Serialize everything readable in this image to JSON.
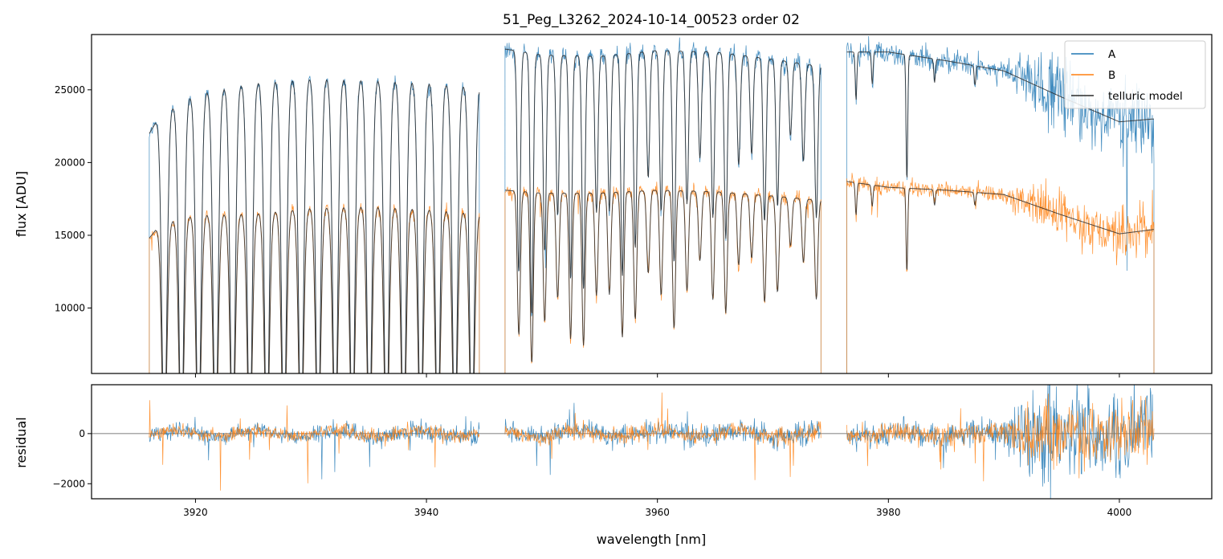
{
  "chart_data": [
    {
      "type": "line",
      "panel": "main",
      "title": "51_Peg_L3262_2024-10-14_00523  order 02",
      "xlabel": "",
      "ylabel": "flux [ADU]",
      "xlim": [
        3911,
        4008
      ],
      "ylim": [
        5500,
        28800
      ],
      "xticks": [
        3920,
        3940,
        3960,
        3980,
        4000
      ],
      "yticks": [
        10000,
        15000,
        20000,
        25000
      ],
      "grid": false,
      "legend": {
        "placement": "top-right",
        "entries": [
          "A",
          "B",
          "telluric model"
        ]
      },
      "segments": [
        [
          3916.0,
          3944.6
        ],
        [
          3946.8,
          3974.2
        ],
        [
          3976.4,
          4003.0
        ]
      ],
      "series": [
        {
          "name": "A",
          "color": "#1f77b4",
          "continuum": [
            [
              3916.0,
              22000
            ],
            [
              3917,
              23300
            ],
            [
              3920,
              24700
            ],
            [
              3925,
              25500
            ],
            [
              3930,
              25800
            ],
            [
              3935,
              25700
            ],
            [
              3940,
              25500
            ],
            [
              3944.6,
              25200
            ],
            [
              3946.8,
              27800
            ],
            [
              3950,
              27400
            ],
            [
              3955,
              27300
            ],
            [
              3960,
              27700
            ],
            [
              3965,
              27600
            ],
            [
              3970,
              27100
            ],
            [
              3974.2,
              26600
            ],
            [
              3976.4,
              27600
            ],
            [
              3980,
              27600
            ],
            [
              3985,
              27000
            ],
            [
              3990,
              26300
            ],
            [
              3995,
              24500
            ],
            [
              4000,
              22800
            ],
            [
              4003.0,
              23000
            ]
          ],
          "noise": [
            [
              3916,
              300
            ],
            [
              3990,
              600
            ],
            [
              3993,
              1800
            ],
            [
              4003,
              2200
            ]
          ]
        },
        {
          "name": "B",
          "color": "#ff7f0e",
          "continuum": [
            [
              3916.0,
              14800
            ],
            [
              3917,
              15800
            ],
            [
              3920,
              16400
            ],
            [
              3925,
              16500
            ],
            [
              3930,
              16900
            ],
            [
              3935,
              17000
            ],
            [
              3940,
              16800
            ],
            [
              3944.6,
              16500
            ],
            [
              3946.8,
              18100
            ],
            [
              3950,
              17900
            ],
            [
              3955,
              17900
            ],
            [
              3960,
              18100
            ],
            [
              3965,
              18000
            ],
            [
              3970,
              17700
            ],
            [
              3974.2,
              17400
            ],
            [
              3976.4,
              18700
            ],
            [
              3980,
              18300
            ],
            [
              3985,
              18100
            ],
            [
              3990,
              17800
            ],
            [
              3995,
              16400
            ],
            [
              4000,
              15100
            ],
            [
              4003.0,
              15400
            ]
          ],
          "noise": [
            [
              3916,
              250
            ],
            [
              3990,
              450
            ],
            [
              3993,
              1100
            ],
            [
              4003,
              1400
            ]
          ]
        },
        {
          "name": "telluric model",
          "color": "#2b2b2b"
        }
      ]
    },
    {
      "type": "line",
      "panel": "residual",
      "xlabel": "wavelength [nm]",
      "ylabel": "residual",
      "xlim": [
        3911,
        4008
      ],
      "ylim": [
        -2600,
        1950
      ],
      "xticks": [
        3920,
        3940,
        3960,
        3980,
        4000
      ],
      "yticks": [
        -2000,
        0
      ],
      "reference_line": 0,
      "series": [
        {
          "name": "A",
          "color": "#1f77b4",
          "noise": [
            [
              3916,
              380
            ],
            [
              3990,
              700
            ],
            [
              3992,
              2300
            ],
            [
              4003,
              2400
            ]
          ]
        },
        {
          "name": "B",
          "color": "#ff7f0e",
          "noise": [
            [
              3916,
              320
            ],
            [
              3990,
              550
            ],
            [
              3992,
              1500
            ],
            [
              4003,
              1600
            ]
          ]
        }
      ]
    }
  ]
}
